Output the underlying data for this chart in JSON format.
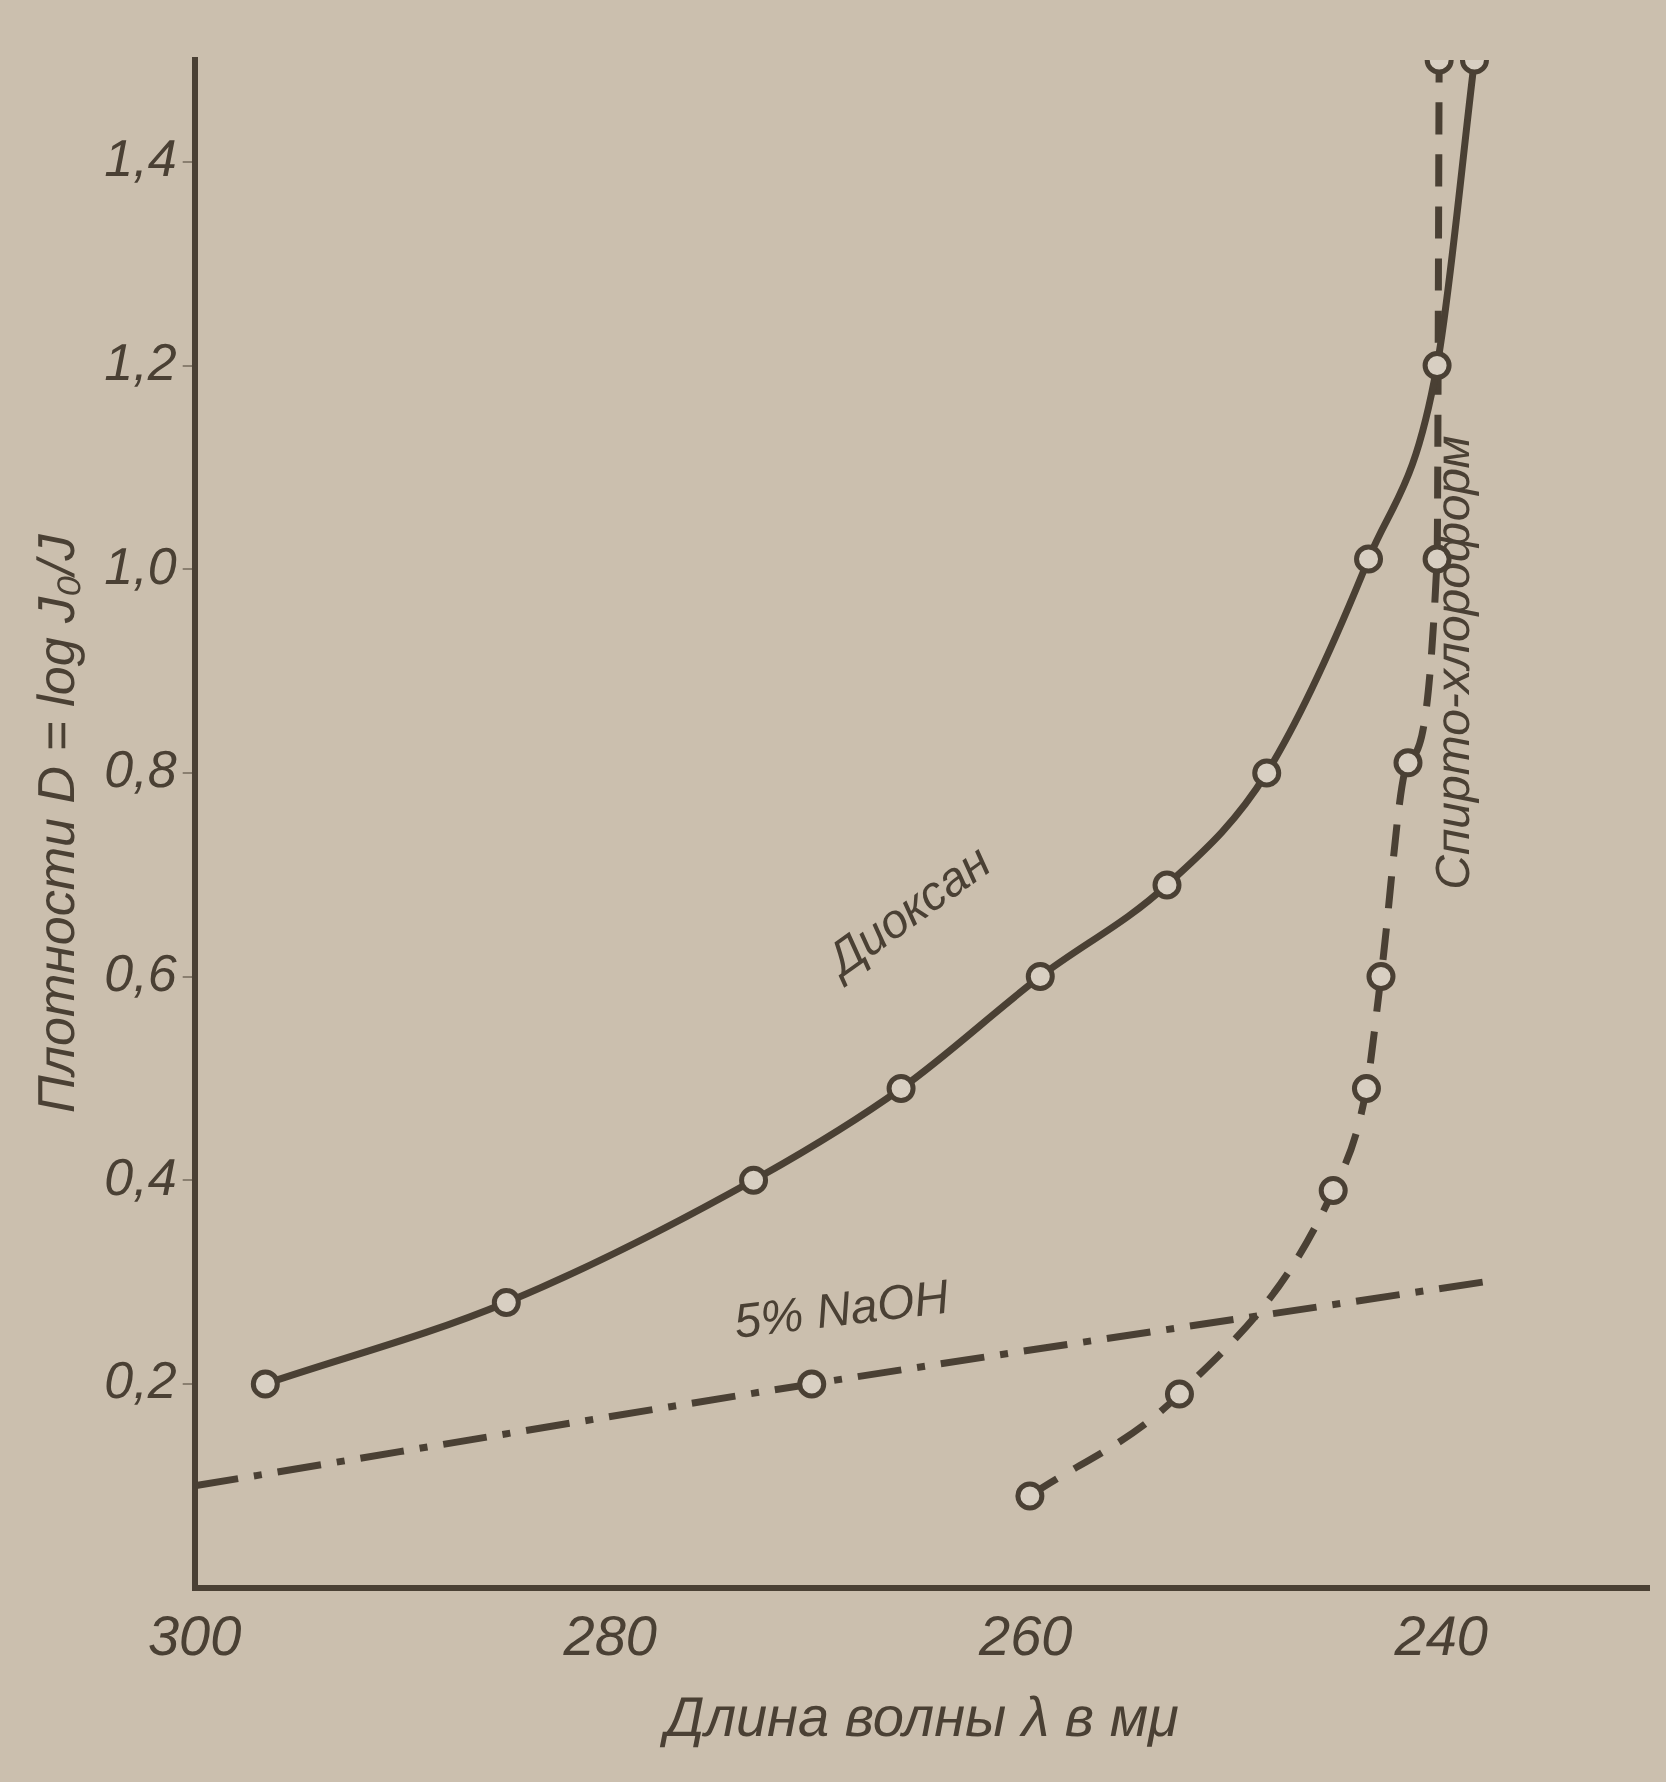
{
  "chart_data": {
    "type": "line",
    "xlabel": "Длина волны λ в мμ",
    "ylabel": "Плотности D = log J₀/J",
    "xlim": [
      300,
      230
    ],
    "xticks": [
      300,
      280,
      260,
      240
    ],
    "ylim": [
      0,
      1.5
    ],
    "yticks": [
      {
        "value": 0.2,
        "label": "0,2"
      },
      {
        "value": 0.4,
        "label": "0,4"
      },
      {
        "value": 0.6,
        "label": "0,6"
      },
      {
        "value": 0.8,
        "label": "0,8"
      },
      {
        "value": 1.0,
        "label": "1,0"
      },
      {
        "value": 1.2,
        "label": "1,2"
      },
      {
        "value": 1.4,
        "label": "1,4"
      }
    ],
    "grid": false,
    "legend": false,
    "marker": "circle",
    "series": [
      {
        "name": "Диоксан",
        "color": "#4a4034",
        "line_style": "solid",
        "x": [
          296.6,
          285,
          273.1,
          266,
          259.3,
          253.2,
          248.4,
          243.5,
          240.2,
          238.4
        ],
        "values": [
          0.2,
          0.28,
          0.4,
          0.49,
          0.6,
          0.69,
          0.8,
          1.01,
          1.2,
          1.5
        ]
      },
      {
        "name": "Спирто-хлороформ",
        "color": "#4a4034",
        "line_style": "dashed",
        "x": [
          259.8,
          252.6,
          245.2,
          243.6,
          242.9,
          241.6,
          240.2,
          240.1
        ],
        "values": [
          0.09,
          0.19,
          0.39,
          0.49,
          0.6,
          0.81,
          1.01,
          1.5
        ]
      },
      {
        "name": "5% NaOH",
        "color": "#4a4034",
        "line_style": "dashdot",
        "marker": "none",
        "x": [
          300,
          270.3,
          238
        ],
        "values": [
          0.1,
          0.2,
          0.3
        ]
      },
      {
        "type": "scatter",
        "color": "#4a4034",
        "x": [
          270.3
        ],
        "values": [
          0.2
        ]
      }
    ]
  }
}
